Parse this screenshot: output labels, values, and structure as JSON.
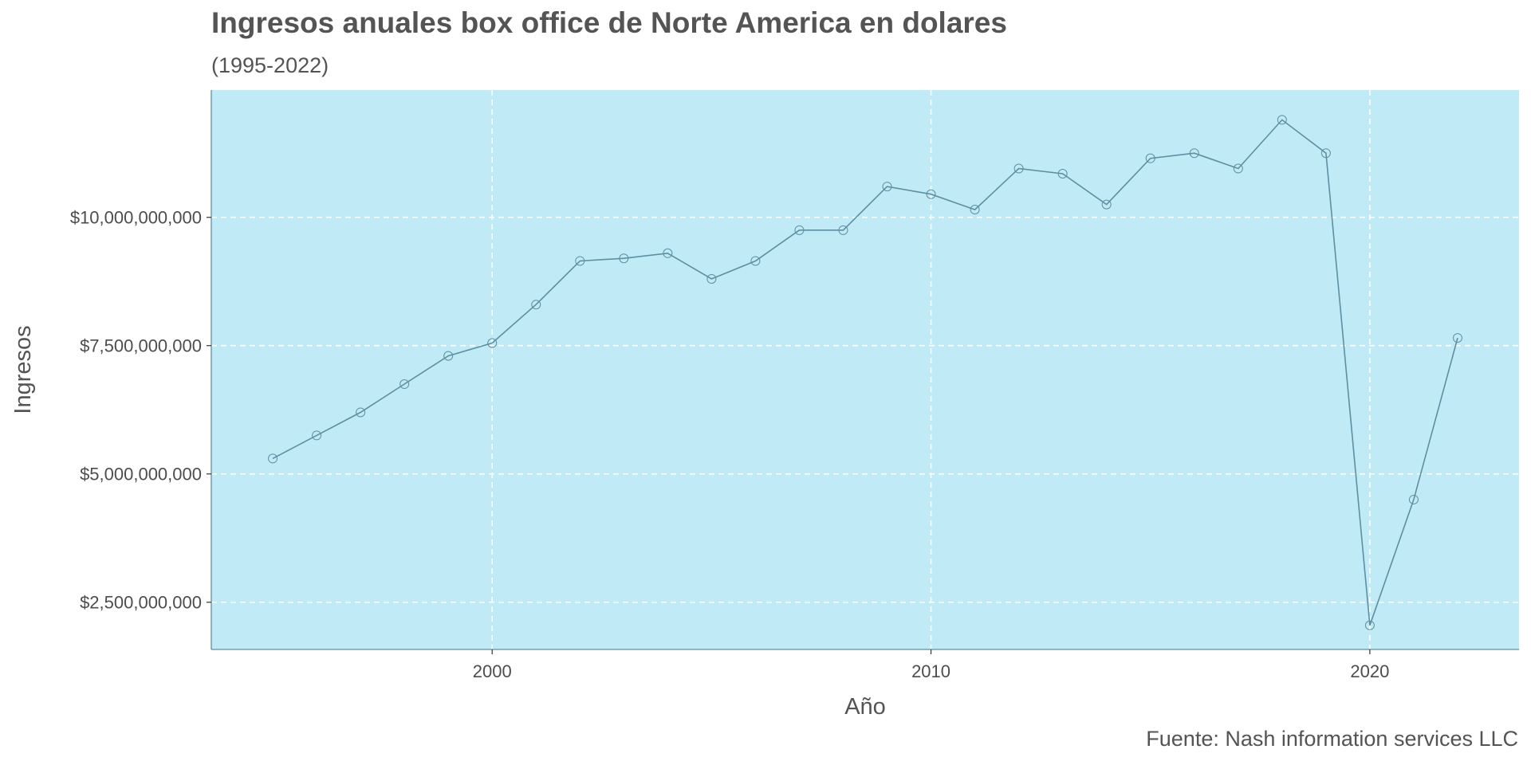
{
  "chart_data": {
    "type": "line",
    "title": "Ingresos anuales box office de Norte America en dolares",
    "subtitle": "(1995-2022)",
    "caption": "Fuente: Nash information services LLC",
    "xlabel": "Año",
    "ylabel": "Ingresos",
    "xlim": [
      1993.6,
      2023.4
    ],
    "ylim": [
      1580000000,
      12480000000
    ],
    "x_ticks": [
      2000,
      2010,
      2020
    ],
    "x_tick_labels": [
      "2000",
      "2010",
      "2020"
    ],
    "y_ticks": [
      2500000000,
      5000000000,
      7500000000,
      10000000000
    ],
    "y_tick_labels": [
      "$2,500,000,000",
      "$5,000,000,000",
      "$7,500,000,000",
      "$10,000,000,000"
    ],
    "grid": true,
    "series": [
      {
        "x": [
          1995,
          1996,
          1997,
          1998,
          1999,
          2000,
          2001,
          2002,
          2003,
          2004,
          2005,
          2006,
          2007,
          2008,
          2009,
          2010,
          2011,
          2012,
          2013,
          2014,
          2015,
          2016,
          2017,
          2018,
          2019,
          2020,
          2021,
          2022
        ],
        "values": [
          5300000000,
          5750000000,
          6200000000,
          6750000000,
          7300000000,
          7550000000,
          8300000000,
          9150000000,
          9200000000,
          9300000000,
          8800000000,
          9150000000,
          9750000000,
          9750000000,
          10600000000,
          10450000000,
          10150000000,
          10950000000,
          10850000000,
          10250000000,
          11150000000,
          11250000000,
          10950000000,
          11900000000,
          11250000000,
          2050000000,
          4500000000,
          7650000000
        ]
      }
    ],
    "colors": {
      "panel_background": "#c0eaf6",
      "grid": "#ffffff",
      "line": "#5e8fa0",
      "axis": "#5e8fa0"
    }
  }
}
